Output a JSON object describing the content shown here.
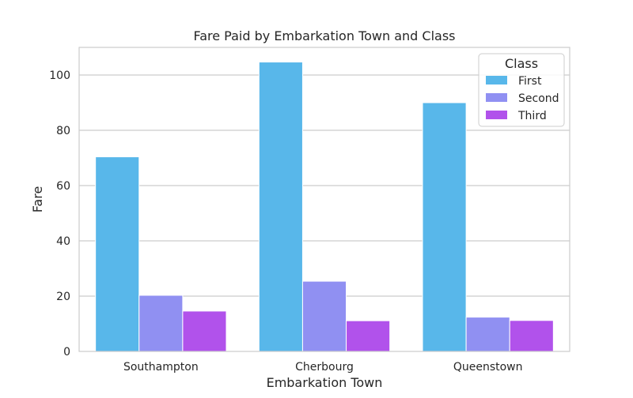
{
  "chart_data": {
    "type": "bar",
    "title": "Fare Paid by Embarkation Town and Class",
    "xlabel": "Embarkation Town",
    "ylabel": "Fare",
    "categories": [
      "Southampton",
      "Cherbourg",
      "Queenstown"
    ],
    "series": [
      {
        "name": "First",
        "values": [
          70.4,
          104.7,
          90.0
        ],
        "color": "#58b7ea"
      },
      {
        "name": "Second",
        "values": [
          20.3,
          25.4,
          12.4
        ],
        "color": "#9090f2"
      },
      {
        "name": "Third",
        "values": [
          14.6,
          11.1,
          11.2
        ],
        "color": "#b152eb"
      }
    ],
    "ylim": [
      0,
      110
    ],
    "yticks": [
      0,
      20,
      40,
      60,
      80,
      100
    ],
    "grid": true,
    "legend": {
      "title": "Class",
      "position": "top-right"
    }
  }
}
